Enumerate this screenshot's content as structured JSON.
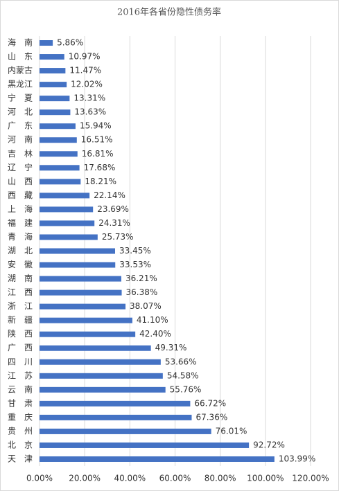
{
  "chart_data": {
    "type": "barh",
    "title": "2016年各省份隐性债务率",
    "categories": [
      "海　南",
      "山　东",
      "内蒙古",
      "黑龙江",
      "宁　夏",
      "河　北",
      "广　东",
      "河　南",
      "吉　林",
      "辽　宁",
      "山　西",
      "西　藏",
      "上　海",
      "福　建",
      "青　海",
      "湖　北",
      "安　徽",
      "湖　南",
      "江　西",
      "浙　江",
      "新　疆",
      "陕　西",
      "广　西",
      "四　川",
      "江　苏",
      "云　南",
      "甘　肃",
      "重　庆",
      "贵　州",
      "北　京",
      "天　津"
    ],
    "values": [
      5.86,
      10.97,
      11.47,
      12.02,
      13.31,
      13.63,
      15.94,
      16.51,
      16.81,
      17.68,
      18.21,
      22.14,
      23.69,
      24.31,
      25.73,
      33.45,
      33.53,
      36.21,
      36.38,
      38.07,
      41.1,
      42.4,
      49.31,
      53.66,
      54.58,
      55.76,
      66.72,
      67.36,
      76.01,
      92.72,
      103.99
    ],
    "value_labels": [
      "5.86%",
      "10.97%",
      "11.47%",
      "12.02%",
      "13.31%",
      "13.63%",
      "15.94%",
      "16.51%",
      "16.81%",
      "17.68%",
      "18.21%",
      "22.14%",
      "23.69%",
      "24.31%",
      "25.73%",
      "33.45%",
      "33.53%",
      "36.21%",
      "36.38%",
      "38.07%",
      "41.10%",
      "42.40%",
      "49.31%",
      "53.66%",
      "54.58%",
      "55.76%",
      "66.72%",
      "67.36%",
      "76.01%",
      "92.72%",
      "103.99%"
    ],
    "color": "#4472c4",
    "xlim": [
      0,
      120
    ],
    "xticks": [
      {
        "value": 0,
        "label": "0.00%"
      },
      {
        "value": 20,
        "label": "20.00%"
      },
      {
        "value": 40,
        "label": "40.00%"
      },
      {
        "value": 60,
        "label": "60.00%"
      },
      {
        "value": 80,
        "label": "80.00%"
      },
      {
        "value": 100,
        "label": "100.00%"
      },
      {
        "value": 120,
        "label": "120.00%"
      }
    ],
    "grid": true
  }
}
